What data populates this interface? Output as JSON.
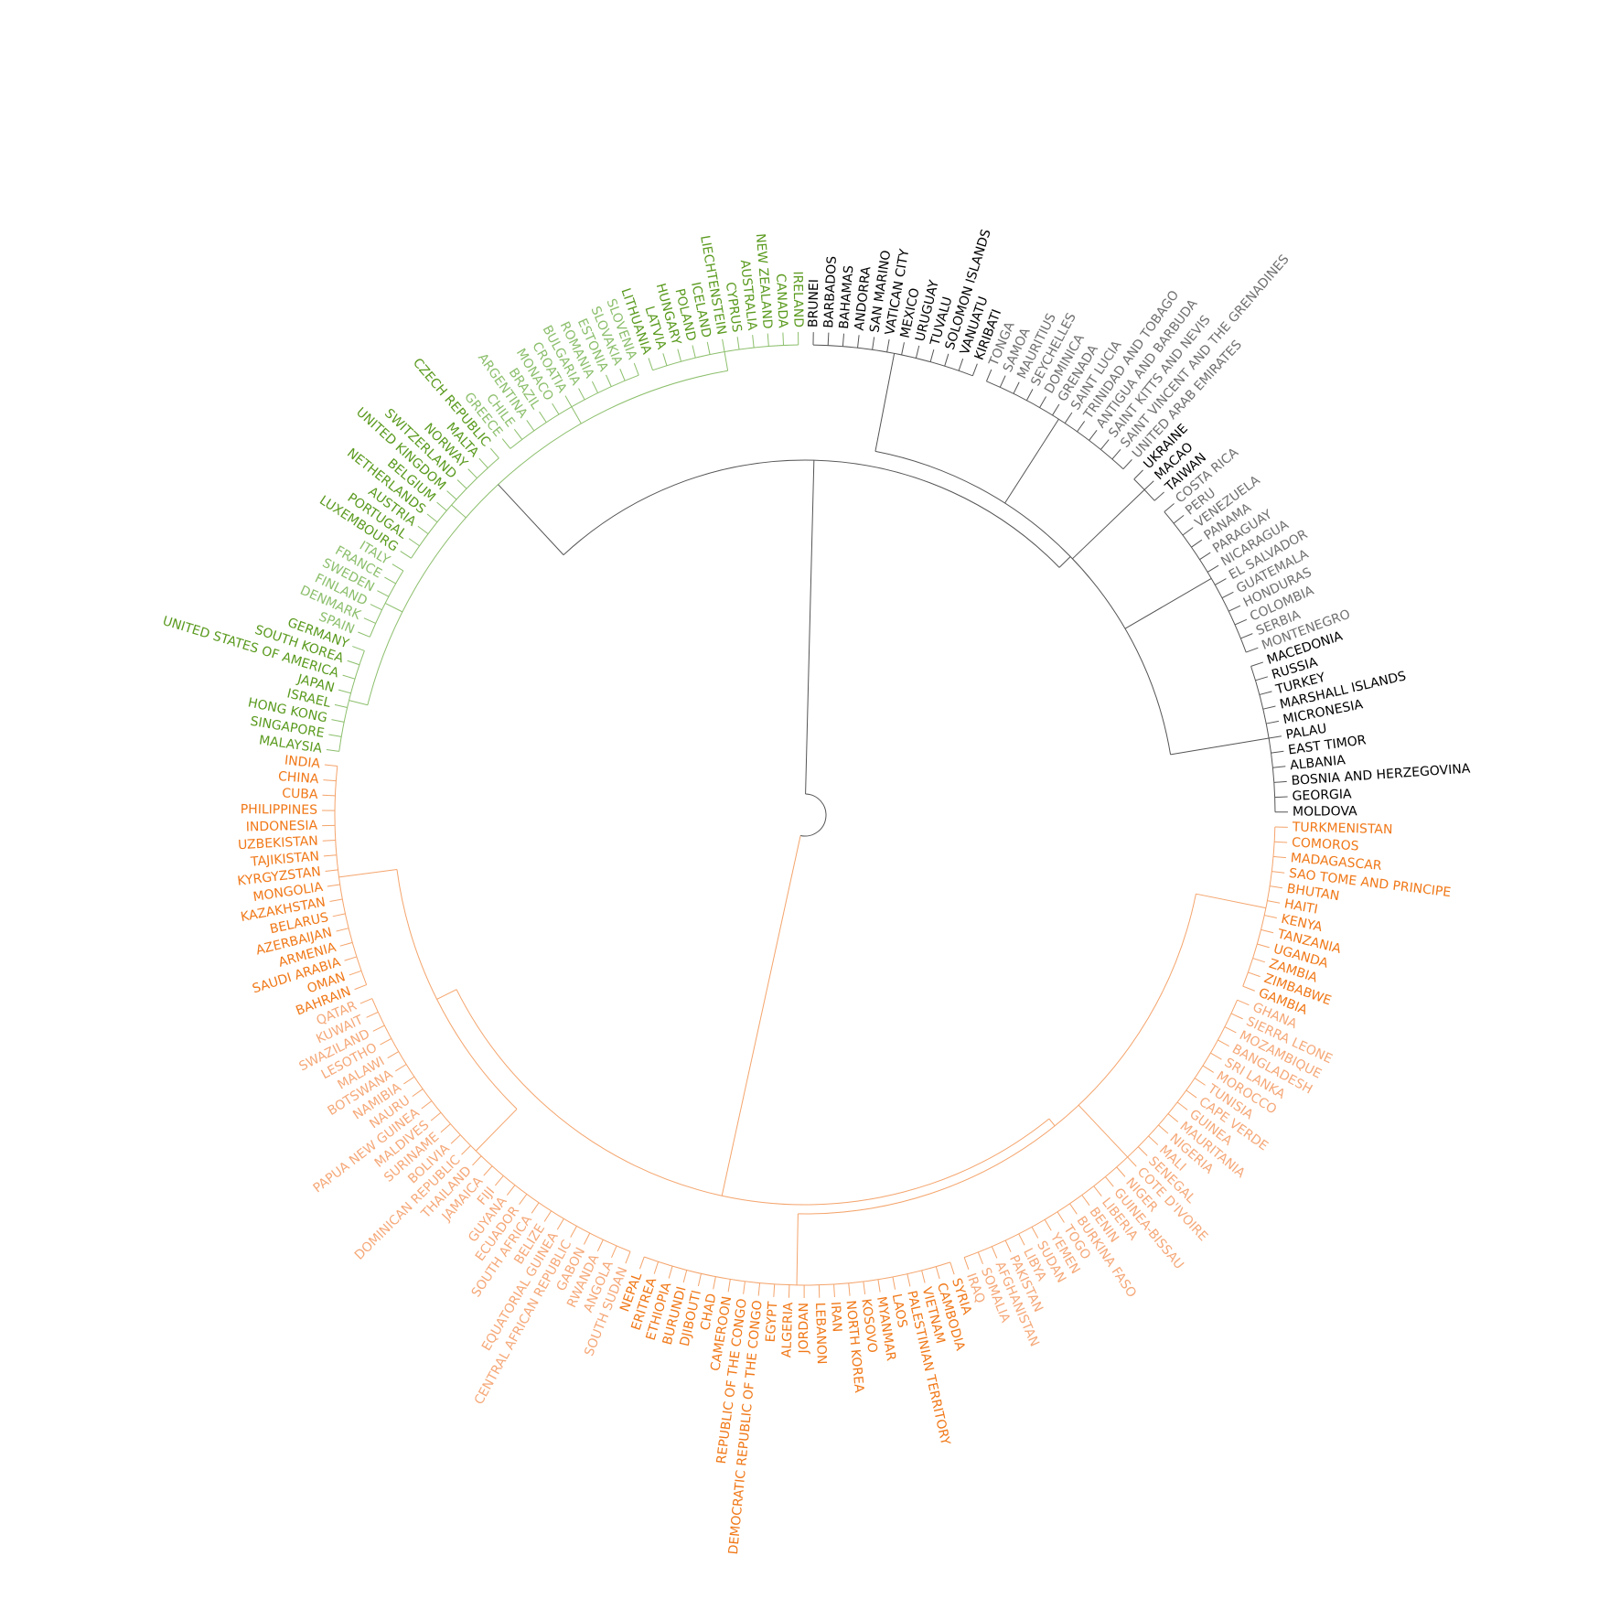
{
  "clusters": [
    {
      "line_color": "#555555",
      "subclusters": [
        {
          "color": "#000000",
          "labels": [
            "BRUNEI",
            "BARBADOS",
            "BAHAMAS",
            "ANDORRA",
            "SAN MARINO",
            "VATICAN CITY",
            "MEXICO",
            "URUGUAY",
            "TUVALU",
            "SOLOMON ISLANDS",
            "VANUATU",
            "KIRIBATI"
          ]
        },
        {
          "color": "#707070",
          "labels": [
            "TONGA",
            "SAMOA",
            "MAURITIUS",
            "SEYCHELLES",
            "DOMINICA",
            "GRENADA",
            "SAINT LUCIA",
            "TRINIDAD AND TOBAGO",
            "ANTIGUA AND BARBUDA",
            "SAINT KITTS AND NEVIS",
            "SAINT VINCENT AND THE GRENADINES",
            "UNITED ARAB EMIRATES"
          ]
        },
        {
          "color": "#000000",
          "labels": [
            "UKRAINE",
            "MACAO",
            "TAIWAN"
          ]
        },
        {
          "color": "#707070",
          "labels": [
            "COSTA RICA",
            "PERU",
            "VENEZUELA",
            "PANAMA",
            "PARAGUAY",
            "NICARAGUA",
            "EL SALVADOR",
            "GUATEMALA",
            "HONDURAS",
            "COLOMBIA",
            "SERBIA",
            "MONTENEGRO"
          ]
        },
        {
          "color": "#000000",
          "labels": [
            "MACEDONIA",
            "RUSSIA",
            "TURKEY",
            "MARSHALL ISLANDS",
            "MICRONESIA",
            "PALAU",
            "EAST TIMOR",
            "ALBANIA",
            "BOSNIA AND HERZEGOVINA",
            "GEORGIA",
            "MOLDOVA"
          ]
        }
      ]
    },
    {
      "line_color": "#f4a46c",
      "subclusters": [
        {
          "color": "#f07818",
          "labels": [
            "TURKMENISTAN",
            "COMOROS",
            "MADAGASCAR",
            "SAO TOME AND PRINCIPE",
            "BHUTAN",
            "HAITI",
            "KENYA",
            "TANZANIA",
            "UGANDA",
            "ZAMBIA",
            "ZIMBABWE",
            "GAMBIA"
          ]
        },
        {
          "color": "#f5a878",
          "labels": [
            "GHANA",
            "SIERRA LEONE",
            "MOZAMBIQUE",
            "BANGLADESH",
            "SRI LANKA",
            "MOROCCO",
            "TUNISIA",
            "CAPE VERDE",
            "GUINEA",
            "MAURITANIA",
            "NIGERIA",
            "MALI",
            "SENEGAL",
            "COTE D'IVOIRE",
            "NIGER",
            "GUINEA-BISSAU",
            "LIBERIA",
            "BENIN",
            "BURKINA FASO",
            "TOGO",
            "YEMEN",
            "SUDAN",
            "LIBYA",
            "PAKISTAN",
            "AFGHANISTAN",
            "SOMALIA",
            "IRAQ"
          ]
        },
        {
          "color": "#f07818",
          "labels": [
            "SYRIA",
            "CAMBODIA",
            "VIETNAM",
            "PALESTINIAN TERRITORY",
            "LAOS",
            "MYANMAR",
            "KOSOVO",
            "NORTH KOREA",
            "IRAN",
            "LEBANON",
            "JORDAN",
            "ALGERIA",
            "EGYPT",
            "DEMOCRATIC REPUBLIC OF THE CONGO",
            "REPUBLIC OF THE CONGO",
            "CAMEROON",
            "CHAD",
            "DJIBOUTI",
            "BURUNDI",
            "ETHIOPIA",
            "ERITREA",
            "NEPAL"
          ]
        },
        {
          "color": "#f5a878",
          "labels": [
            "SOUTH SUDAN",
            "ANGOLA",
            "RWANDA",
            "GABON",
            "CENTRAL AFRICAN REPUBLIC",
            "EQUATORIAL GUINEA",
            "BELIZE",
            "SOUTH AFRICA",
            "ECUADOR",
            "GUYANA",
            "FIJI",
            "JAMAICA",
            "THAILAND",
            "DOMINICAN REPUBLIC",
            "BOLIVIA",
            "SURINAME",
            "MALDIVES",
            "PAPUA NEW GUINEA",
            "NAURU",
            "NAMIBIA",
            "BOTSWANA",
            "MALAWI",
            "LESOTHO",
            "SWAZILAND",
            "KUWAIT",
            "QATAR"
          ]
        },
        {
          "color": "#f07818",
          "labels": [
            "BAHRAIN",
            "OMAN",
            "SAUDI ARABIA",
            "ARMENIA",
            "AZERBAIJAN",
            "BELARUS",
            "KAZAKHSTAN",
            "MONGOLIA",
            "KYRGYZSTAN",
            "TAJIKISTAN",
            "UZBEKISTAN",
            "INDONESIA",
            "PHILIPPINES",
            "CUBA",
            "CHINA",
            "INDIA"
          ]
        }
      ]
    },
    {
      "line_color": "#8cbf6c",
      "subclusters": [
        {
          "color": "#5a9a1e",
          "labels": [
            "MALAYSIA",
            "SINGAPORE",
            "HONG KONG",
            "ISRAEL",
            "JAPAN",
            "UNITED STATES OF AMERICA",
            "SOUTH KOREA",
            "GERMANY"
          ]
        },
        {
          "color": "#8cbf6c",
          "labels": [
            "SPAIN",
            "DENMARK",
            "FINLAND",
            "SWEDEN",
            "FRANCE",
            "ITALY"
          ]
        },
        {
          "color": "#5a9a1e",
          "labels": [
            "LUXEMBOURG",
            "PORTUGAL",
            "AUSTRIA",
            "NETHERLANDS",
            "BELGIUM",
            "UNITED KINGDOM",
            "SWITZERLAND",
            "NORWAY",
            "MALTA",
            "CZECH REPUBLIC"
          ]
        },
        {
          "color": "#8cbf6c",
          "labels": [
            "GREECE",
            "CHILE",
            "ARGENTINA",
            "BRAZIL",
            "MONACO",
            "CROATIA",
            "BULGARIA",
            "ROMANIA",
            "ESTONIA",
            "SLOVAKIA",
            "SLOVENIA"
          ]
        },
        {
          "color": "#5a9a1e",
          "labels": [
            "LITHUANIA",
            "LATVIA",
            "HUNGARY",
            "POLAND",
            "ICELAND",
            "LIECHTENSTEIN",
            "CYPRUS",
            "AUSTRALIA",
            "NEW ZEALAND",
            "CANADA",
            "IRELAND"
          ]
        }
      ]
    }
  ]
}
